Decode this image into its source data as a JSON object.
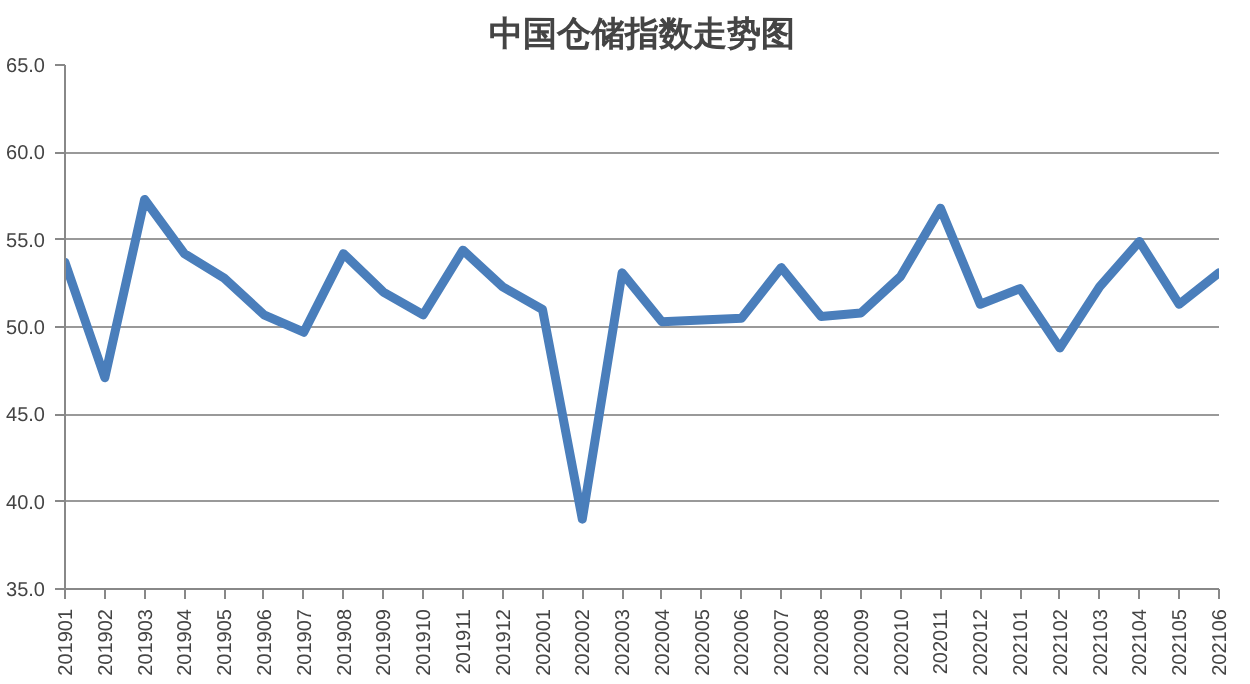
{
  "chart_data": {
    "type": "line",
    "title": "中国仓储指数走势图",
    "categories": [
      "201901",
      "201902",
      "201903",
      "201904",
      "201905",
      "201906",
      "201907",
      "201908",
      "201909",
      "201910",
      "201911",
      "201912",
      "202001",
      "202002",
      "202003",
      "202004",
      "202005",
      "202006",
      "202007",
      "202008",
      "202009",
      "202010",
      "202011",
      "202012",
      "202101",
      "202102",
      "202103",
      "202104",
      "202105",
      "202106"
    ],
    "series": [
      {
        "color": "#4a7ebb",
        "values": [
          53.7,
          47.1,
          57.3,
          54.2,
          52.8,
          50.7,
          49.7,
          54.2,
          52.0,
          50.7,
          54.4,
          52.3,
          51.0,
          39.0,
          53.1,
          50.3,
          50.4,
          50.5,
          53.4,
          50.6,
          50.8,
          52.9,
          56.8,
          51.3,
          52.2,
          48.8,
          52.3,
          54.9,
          51.3,
          53.1
        ]
      }
    ],
    "ylim": [
      35,
      65
    ],
    "yticks": [
      {
        "value": 35,
        "label": "35.0"
      },
      {
        "value": 40,
        "label": "40.0"
      },
      {
        "value": 45,
        "label": "45.0"
      },
      {
        "value": 50,
        "label": "50.0"
      },
      {
        "value": 55,
        "label": "55.0"
      },
      {
        "value": 60,
        "label": "60.0"
      },
      {
        "value": 65,
        "label": "65.0"
      }
    ],
    "grid": "y",
    "marker": "none",
    "line_style": "solid"
  }
}
